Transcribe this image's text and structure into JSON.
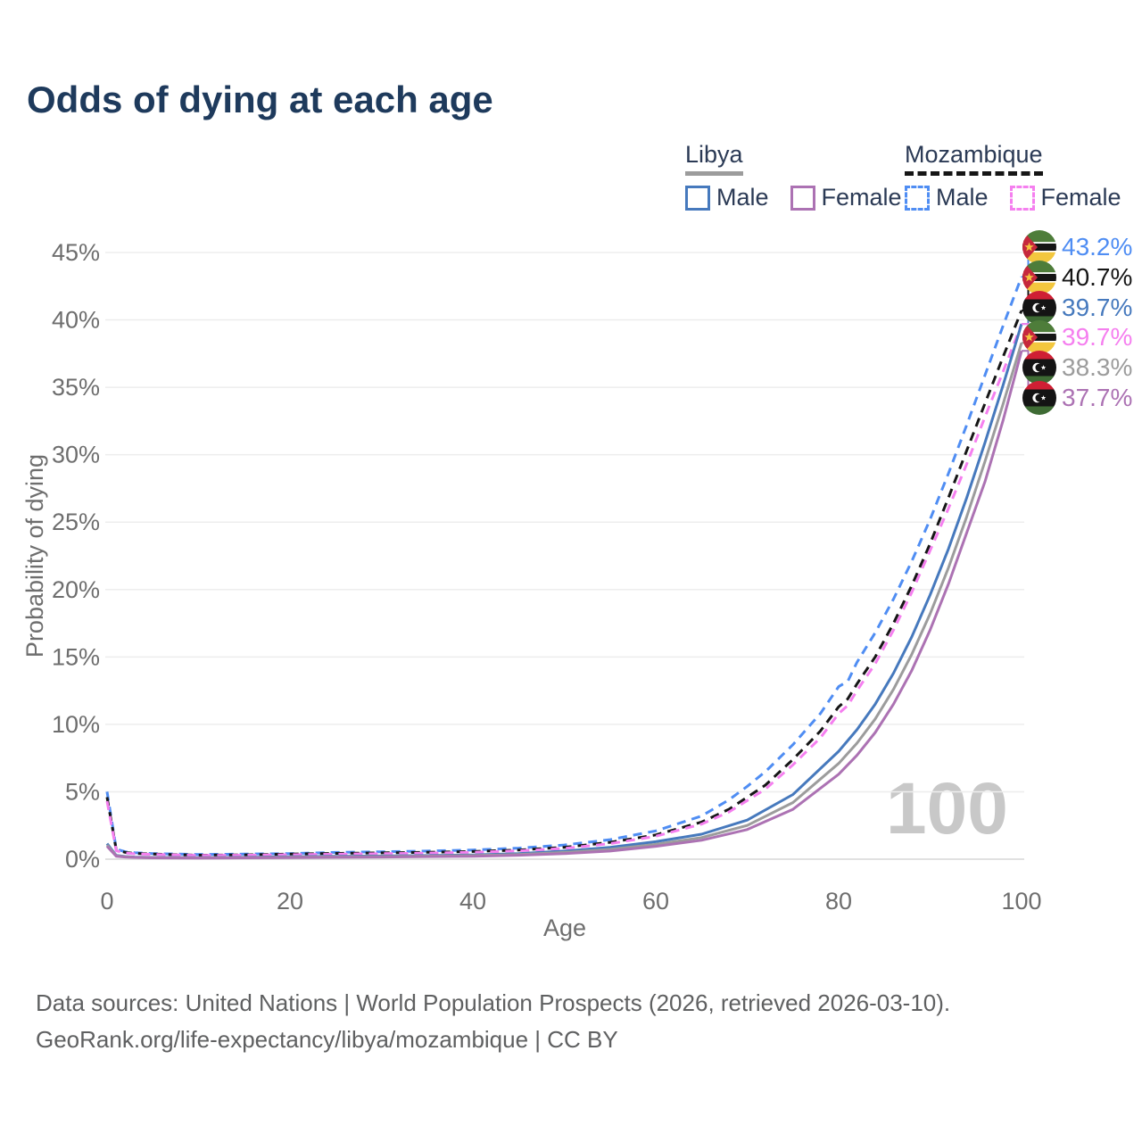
{
  "title": "Odds of dying at each age",
  "legend": {
    "groups": [
      {
        "label": "Libya",
        "underline_style": "solid",
        "underline_color": "#9c9c9c",
        "items": [
          {
            "label": "Male",
            "color": "#4679bd",
            "dash": false
          },
          {
            "label": "Female",
            "color": "#ac72b3",
            "dash": false
          }
        ]
      },
      {
        "label": "Mozambique",
        "underline_style": "dashed",
        "underline_color": "#161616",
        "items": [
          {
            "label": "Male",
            "color": "#4f8df3",
            "dash": true
          },
          {
            "label": "Female",
            "color": "#f57fef",
            "dash": true
          }
        ]
      }
    ]
  },
  "chart_data": {
    "type": "line",
    "title": "Odds of dying at each age",
    "xlabel": "Age",
    "ylabel": "Probability of dying",
    "xlim": [
      0,
      100
    ],
    "ylim": [
      0,
      45
    ],
    "grid": true,
    "x_ticks": [
      0,
      20,
      40,
      60,
      80,
      100
    ],
    "y_ticks": [
      {
        "v": 0,
        "label": "0%"
      },
      {
        "v": 5,
        "label": "5%"
      },
      {
        "v": 10,
        "label": "10%"
      },
      {
        "v": 15,
        "label": "15%"
      },
      {
        "v": 20,
        "label": "20%"
      },
      {
        "v": 25,
        "label": "25%"
      },
      {
        "v": 30,
        "label": "30%"
      },
      {
        "v": 35,
        "label": "35%"
      },
      {
        "v": 40,
        "label": "40%"
      },
      {
        "v": 45,
        "label": "45%"
      }
    ],
    "age_counter": "100",
    "series": [
      {
        "id": "mozambique-male",
        "name": "Mozambique Male",
        "country": "mozambique",
        "color": "#4f8df3",
        "dash": true,
        "points": [
          [
            0,
            5.0
          ],
          [
            1,
            0.75
          ],
          [
            2,
            0.55
          ],
          [
            3,
            0.48
          ],
          [
            5,
            0.42
          ],
          [
            10,
            0.35
          ],
          [
            15,
            0.38
          ],
          [
            20,
            0.42
          ],
          [
            25,
            0.5
          ],
          [
            30,
            0.55
          ],
          [
            35,
            0.6
          ],
          [
            40,
            0.68
          ],
          [
            45,
            0.82
          ],
          [
            50,
            1.05
          ],
          [
            55,
            1.45
          ],
          [
            60,
            2.1
          ],
          [
            65,
            3.2
          ],
          [
            68,
            4.4
          ],
          [
            70,
            5.4
          ],
          [
            72,
            6.5
          ],
          [
            75,
            8.5
          ],
          [
            78,
            10.8
          ],
          [
            80,
            12.8
          ],
          [
            81,
            13.2
          ],
          [
            82,
            14.6
          ],
          [
            84,
            16.8
          ],
          [
            86,
            19.3
          ],
          [
            88,
            22.1
          ],
          [
            90,
            25.2
          ],
          [
            92,
            28.6
          ],
          [
            94,
            32.2
          ],
          [
            96,
            35.9
          ],
          [
            98,
            39.6
          ],
          [
            100,
            43.2
          ]
        ]
      },
      {
        "id": "mozambique",
        "name": "Mozambique",
        "country": "mozambique",
        "color": "#161616",
        "dash": true,
        "points": [
          [
            0,
            4.6
          ],
          [
            1,
            0.68
          ],
          [
            2,
            0.5
          ],
          [
            3,
            0.43
          ],
          [
            5,
            0.38
          ],
          [
            10,
            0.3
          ],
          [
            15,
            0.32
          ],
          [
            20,
            0.38
          ],
          [
            25,
            0.43
          ],
          [
            30,
            0.47
          ],
          [
            35,
            0.51
          ],
          [
            40,
            0.57
          ],
          [
            45,
            0.68
          ],
          [
            50,
            0.88
          ],
          [
            55,
            1.25
          ],
          [
            60,
            1.8
          ],
          [
            65,
            2.75
          ],
          [
            68,
            3.7
          ],
          [
            70,
            4.6
          ],
          [
            72,
            5.5
          ],
          [
            75,
            7.4
          ],
          [
            78,
            9.5
          ],
          [
            80,
            11.3
          ],
          [
            81,
            11.9
          ],
          [
            82,
            13.0
          ],
          [
            84,
            15.0
          ],
          [
            86,
            17.5
          ],
          [
            88,
            20.3
          ],
          [
            90,
            23.4
          ],
          [
            92,
            26.8
          ],
          [
            94,
            30.3
          ],
          [
            96,
            33.8
          ],
          [
            98,
            37.3
          ],
          [
            100,
            40.7
          ]
        ]
      },
      {
        "id": "mozambique-female",
        "name": "Mozambique Female",
        "country": "mozambique",
        "color": "#f57fef",
        "dash": true,
        "points": [
          [
            0,
            4.3
          ],
          [
            1,
            0.62
          ],
          [
            2,
            0.46
          ],
          [
            3,
            0.4
          ],
          [
            5,
            0.35
          ],
          [
            10,
            0.28
          ],
          [
            15,
            0.29
          ],
          [
            20,
            0.33
          ],
          [
            25,
            0.37
          ],
          [
            30,
            0.41
          ],
          [
            35,
            0.45
          ],
          [
            40,
            0.51
          ],
          [
            45,
            0.62
          ],
          [
            50,
            0.8
          ],
          [
            55,
            1.15
          ],
          [
            60,
            1.7
          ],
          [
            65,
            2.6
          ],
          [
            68,
            3.5
          ],
          [
            70,
            4.35
          ],
          [
            72,
            5.2
          ],
          [
            75,
            7.0
          ],
          [
            78,
            9.0
          ],
          [
            80,
            10.8
          ],
          [
            81,
            11.4
          ],
          [
            82,
            12.5
          ],
          [
            84,
            14.5
          ],
          [
            86,
            17.0
          ],
          [
            88,
            19.8
          ],
          [
            90,
            22.9
          ],
          [
            92,
            26.0
          ],
          [
            94,
            29.3
          ],
          [
            96,
            32.8
          ],
          [
            98,
            36.2
          ],
          [
            100,
            39.7
          ]
        ]
      },
      {
        "id": "libya-male",
        "name": "Libya Male",
        "country": "libya",
        "color": "#4679bd",
        "dash": false,
        "points": [
          [
            0,
            1.15
          ],
          [
            1,
            0.28
          ],
          [
            2,
            0.2
          ],
          [
            3,
            0.16
          ],
          [
            5,
            0.13
          ],
          [
            10,
            0.11
          ],
          [
            15,
            0.14
          ],
          [
            20,
            0.18
          ],
          [
            25,
            0.21
          ],
          [
            30,
            0.24
          ],
          [
            35,
            0.27
          ],
          [
            40,
            0.32
          ],
          [
            45,
            0.42
          ],
          [
            50,
            0.6
          ],
          [
            55,
            0.88
          ],
          [
            60,
            1.3
          ],
          [
            65,
            1.85
          ],
          [
            70,
            2.9
          ],
          [
            75,
            4.8
          ],
          [
            80,
            8.0
          ],
          [
            82,
            9.6
          ],
          [
            84,
            11.5
          ],
          [
            86,
            13.8
          ],
          [
            88,
            16.5
          ],
          [
            90,
            19.6
          ],
          [
            92,
            23.0
          ],
          [
            94,
            26.8
          ],
          [
            96,
            30.9
          ],
          [
            98,
            35.2
          ],
          [
            100,
            39.7
          ]
        ]
      },
      {
        "id": "libya",
        "name": "Libya",
        "country": "libya",
        "color": "#9c9c9c",
        "dash": false,
        "points": [
          [
            0,
            1.05
          ],
          [
            1,
            0.25
          ],
          [
            2,
            0.18
          ],
          [
            3,
            0.14
          ],
          [
            5,
            0.12
          ],
          [
            10,
            0.1
          ],
          [
            15,
            0.12
          ],
          [
            20,
            0.15
          ],
          [
            25,
            0.17
          ],
          [
            30,
            0.2
          ],
          [
            35,
            0.23
          ],
          [
            40,
            0.27
          ],
          [
            45,
            0.35
          ],
          [
            50,
            0.5
          ],
          [
            55,
            0.73
          ],
          [
            60,
            1.1
          ],
          [
            65,
            1.6
          ],
          [
            70,
            2.5
          ],
          [
            75,
            4.2
          ],
          [
            80,
            7.1
          ],
          [
            82,
            8.6
          ],
          [
            84,
            10.4
          ],
          [
            86,
            12.6
          ],
          [
            88,
            15.2
          ],
          [
            90,
            18.2
          ],
          [
            92,
            21.6
          ],
          [
            94,
            25.4
          ],
          [
            96,
            29.5
          ],
          [
            98,
            33.8
          ],
          [
            100,
            38.3
          ]
        ]
      },
      {
        "id": "libya-female",
        "name": "Libya Female",
        "country": "libya",
        "color": "#ac72b3",
        "dash": false,
        "points": [
          [
            0,
            0.95
          ],
          [
            1,
            0.22
          ],
          [
            2,
            0.16
          ],
          [
            3,
            0.13
          ],
          [
            5,
            0.1
          ],
          [
            10,
            0.085
          ],
          [
            15,
            0.1
          ],
          [
            20,
            0.12
          ],
          [
            25,
            0.14
          ],
          [
            30,
            0.16
          ],
          [
            35,
            0.19
          ],
          [
            40,
            0.22
          ],
          [
            45,
            0.29
          ],
          [
            50,
            0.41
          ],
          [
            55,
            0.6
          ],
          [
            60,
            0.95
          ],
          [
            65,
            1.4
          ],
          [
            70,
            2.2
          ],
          [
            75,
            3.7
          ],
          [
            80,
            6.3
          ],
          [
            82,
            7.7
          ],
          [
            84,
            9.4
          ],
          [
            86,
            11.5
          ],
          [
            88,
            14.0
          ],
          [
            90,
            17.0
          ],
          [
            92,
            20.4
          ],
          [
            94,
            24.2
          ],
          [
            96,
            28.0
          ],
          [
            98,
            32.6
          ],
          [
            100,
            37.7
          ]
        ]
      }
    ],
    "end_labels": [
      {
        "flag": "mozambique",
        "series": "mozambique-male",
        "value": "43.2%",
        "pct": 43.2,
        "color": "#4f8df3"
      },
      {
        "flag": "mozambique",
        "series": "mozambique",
        "value": "40.7%",
        "pct": 40.7,
        "color": "#161616"
      },
      {
        "flag": "libya",
        "series": "libya-male",
        "value": "39.7%",
        "pct": 39.7,
        "color": "#4679bd"
      },
      {
        "flag": "mozambique",
        "series": "mozambique-female",
        "value": "39.7%",
        "pct": 39.7,
        "color": "#f57fef"
      },
      {
        "flag": "libya",
        "series": "libya",
        "value": "38.3%",
        "pct": 38.3,
        "color": "#9c9c9c"
      },
      {
        "flag": "libya",
        "series": "libya-female",
        "value": "37.7%",
        "pct": 37.7,
        "color": "#ac72b3"
      }
    ]
  },
  "footer": {
    "line1": "Data sources: United Nations | World Population Prospects (2026, retrieved 2026-03-10).",
    "line2": "GeoRank.org/life-expectancy/libya/mozambique | CC BY"
  }
}
